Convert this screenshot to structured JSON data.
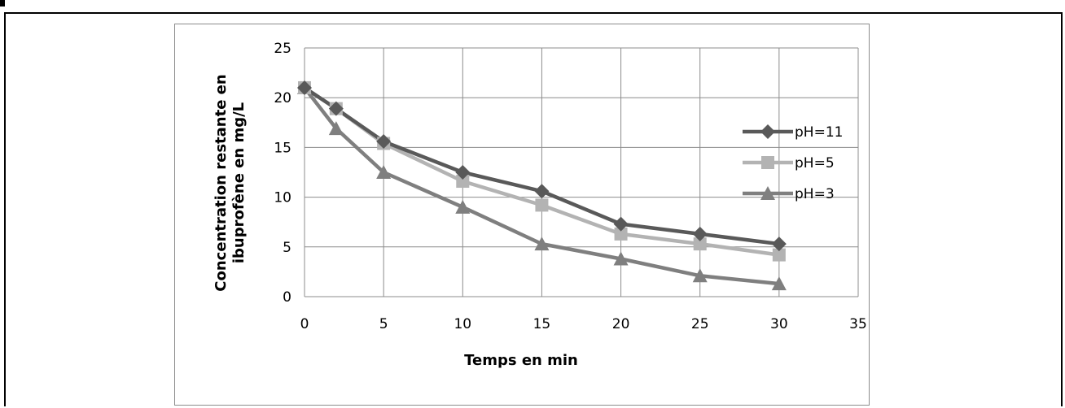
{
  "chart_data": {
    "type": "line",
    "title": "",
    "xlabel": "Temps en min",
    "ylabel_line1": "Concentration restante en",
    "ylabel_line2": "ibuprofène en mg/L",
    "xlim": [
      0,
      35
    ],
    "ylim": [
      0,
      25
    ],
    "xticks": [
      0,
      5,
      10,
      15,
      20,
      25,
      30,
      35
    ],
    "yticks": [
      0,
      5,
      10,
      15,
      20,
      25
    ],
    "grid": true,
    "legend_position": "right",
    "series": [
      {
        "name": "pH=11",
        "marker": "diamond",
        "color": "#595959",
        "x": [
          0,
          2,
          5,
          10,
          15,
          20,
          25,
          30
        ],
        "y": [
          21.0,
          18.9,
          15.6,
          12.5,
          10.6,
          7.3,
          6.3,
          5.3
        ]
      },
      {
        "name": "pH=5",
        "marker": "square",
        "color": "#b3b3b3",
        "x": [
          0,
          2,
          5,
          10,
          15,
          20,
          25,
          30
        ],
        "y": [
          21.0,
          18.9,
          15.4,
          11.6,
          9.2,
          6.3,
          5.3,
          4.2
        ]
      },
      {
        "name": "pH=3",
        "marker": "triangle",
        "color": "#7f7f7f",
        "x": [
          0,
          2,
          5,
          10,
          15,
          20,
          25,
          30
        ],
        "y": [
          21.0,
          16.9,
          12.5,
          9.0,
          5.3,
          3.8,
          2.1,
          1.3
        ]
      }
    ]
  }
}
